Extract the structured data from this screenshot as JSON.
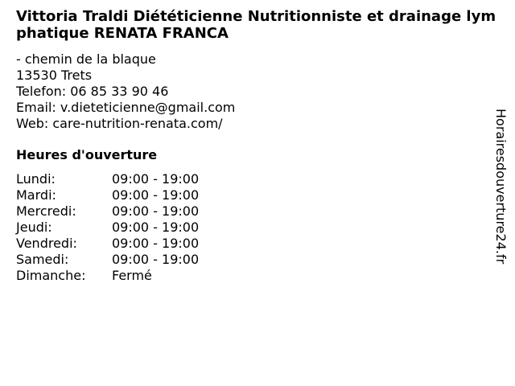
{
  "title": "Vittoria Traldi Diététicienne Nutritionniste et drainage lymphatique RENATA FRANCA",
  "address": {
    "street": "- chemin de la blaque",
    "city": "13530 Trets",
    "phone": "Telefon: 06 85 33 90 46",
    "email": "Email: v.dieteticienne@gmail.com",
    "web": "Web: care-nutrition-renata.com/"
  },
  "hours_heading": "Heures d'ouverture",
  "hours": [
    {
      "day": "Lundi:",
      "time": "09:00 - 19:00"
    },
    {
      "day": "Mardi:",
      "time": "09:00 - 19:00"
    },
    {
      "day": "Mercredi:",
      "time": "09:00 - 19:00"
    },
    {
      "day": "Jeudi:",
      "time": "09:00 - 19:00"
    },
    {
      "day": "Vendredi:",
      "time": "09:00 - 19:00"
    },
    {
      "day": "Samedi:",
      "time": "09:00 - 19:00"
    },
    {
      "day": "Dimanche:",
      "time": "Fermé"
    }
  ],
  "watermark": "Horairesdouverture24.fr"
}
